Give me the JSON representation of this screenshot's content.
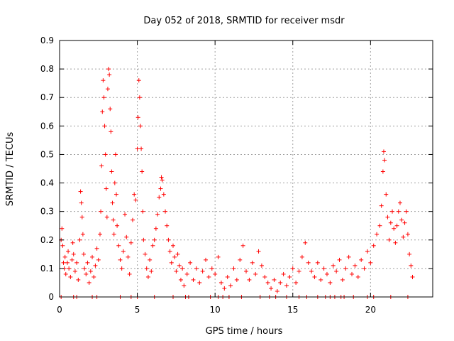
{
  "chart_data": {
    "type": "scatter",
    "title": "Day 052 of 2018, SRMTID for receiver msdr",
    "xlabel": "GPS time / hours",
    "ylabel": "SRMTID / TECUs",
    "xlim": [
      0,
      24
    ],
    "ylim": [
      0,
      0.9
    ],
    "xticks": [
      0,
      5,
      10,
      15,
      20
    ],
    "yticks": [
      0,
      0.1,
      0.2,
      0.3,
      0.4,
      0.5,
      0.6,
      0.7,
      0.8,
      0.9
    ],
    "ytick_labels": [
      "0",
      "0.1",
      "0.2",
      "0.3",
      "0.4",
      "0.5",
      "0.6",
      "0.7",
      "0.8",
      "0.9"
    ],
    "xtick_labels": [
      "0",
      "5",
      "10",
      "15",
      "20"
    ],
    "grid": true,
    "marker": "+",
    "color": "#ff0000",
    "series": [
      {
        "name": "SRMTID",
        "points": [
          [
            0.1,
            0.2
          ],
          [
            0.15,
            0.24
          ],
          [
            0.2,
            0.18
          ],
          [
            0.25,
            0.12
          ],
          [
            0.3,
            0.1
          ],
          [
            0.35,
            0.14
          ],
          [
            0.4,
            0.08
          ],
          [
            0.5,
            0.12
          ],
          [
            0.55,
            0.16
          ],
          [
            0.6,
            0.1
          ],
          [
            0.7,
            0.07
          ],
          [
            0.8,
            0.13
          ],
          [
            0.85,
            0.19
          ],
          [
            0.9,
            0.15
          ],
          [
            1.0,
            0.09
          ],
          [
            1.1,
            0.12
          ],
          [
            1.2,
            0.06
          ],
          [
            1.3,
            0.2
          ],
          [
            1.35,
            0.37
          ],
          [
            1.4,
            0.33
          ],
          [
            1.45,
            0.28
          ],
          [
            1.5,
            0.22
          ],
          [
            1.55,
            0.15
          ],
          [
            1.6,
            0.1
          ],
          [
            1.7,
            0.08
          ],
          [
            1.8,
            0.12
          ],
          [
            1.9,
            0.05
          ],
          [
            2.0,
            0.09
          ],
          [
            2.1,
            0.14
          ],
          [
            2.2,
            0.07
          ],
          [
            2.3,
            0.11
          ],
          [
            2.4,
            0.17
          ],
          [
            2.5,
            0.13
          ],
          [
            2.6,
            0.22
          ],
          [
            2.65,
            0.3
          ],
          [
            2.7,
            0.46
          ],
          [
            2.75,
            0.65
          ],
          [
            2.8,
            0.76
          ],
          [
            2.85,
            0.7
          ],
          [
            2.9,
            0.6
          ],
          [
            2.95,
            0.5
          ],
          [
            3.0,
            0.38
          ],
          [
            3.05,
            0.28
          ],
          [
            3.1,
            0.73
          ],
          [
            3.15,
            0.8
          ],
          [
            3.2,
            0.78
          ],
          [
            3.25,
            0.66
          ],
          [
            3.3,
            0.58
          ],
          [
            3.35,
            0.44
          ],
          [
            3.4,
            0.33
          ],
          [
            3.45,
            0.27
          ],
          [
            3.5,
            0.22
          ],
          [
            3.55,
            0.4
          ],
          [
            3.6,
            0.5
          ],
          [
            3.65,
            0.36
          ],
          [
            3.7,
            0.25
          ],
          [
            3.8,
            0.18
          ],
          [
            3.9,
            0.13
          ],
          [
            4.0,
            0.1
          ],
          [
            4.1,
            0.16
          ],
          [
            4.2,
            0.29
          ],
          [
            4.3,
            0.21
          ],
          [
            4.4,
            0.14
          ],
          [
            4.5,
            0.08
          ],
          [
            4.6,
            0.19
          ],
          [
            4.7,
            0.27
          ],
          [
            4.8,
            0.36
          ],
          [
            4.9,
            0.34
          ],
          [
            5.0,
            0.52
          ],
          [
            5.05,
            0.63
          ],
          [
            5.1,
            0.76
          ],
          [
            5.15,
            0.7
          ],
          [
            5.2,
            0.6
          ],
          [
            5.25,
            0.52
          ],
          [
            5.3,
            0.44
          ],
          [
            5.35,
            0.3
          ],
          [
            5.4,
            0.2
          ],
          [
            5.5,
            0.15
          ],
          [
            5.6,
            0.1
          ],
          [
            5.7,
            0.07
          ],
          [
            5.8,
            0.13
          ],
          [
            5.9,
            0.09
          ],
          [
            6.0,
            0.18
          ],
          [
            6.1,
            0.2
          ],
          [
            6.2,
            0.24
          ],
          [
            6.3,
            0.29
          ],
          [
            6.4,
            0.35
          ],
          [
            6.5,
            0.38
          ],
          [
            6.55,
            0.42
          ],
          [
            6.6,
            0.41
          ],
          [
            6.7,
            0.36
          ],
          [
            6.8,
            0.3
          ],
          [
            6.9,
            0.25
          ],
          [
            7.0,
            0.2
          ],
          [
            7.1,
            0.16
          ],
          [
            7.2,
            0.12
          ],
          [
            7.3,
            0.18
          ],
          [
            7.4,
            0.14
          ],
          [
            7.5,
            0.09
          ],
          [
            7.6,
            0.15
          ],
          [
            7.7,
            0.11
          ],
          [
            7.8,
            0.06
          ],
          [
            7.9,
            0.1
          ],
          [
            8.0,
            0.04
          ],
          [
            8.2,
            0.08
          ],
          [
            8.4,
            0.12
          ],
          [
            8.6,
            0.06
          ],
          [
            8.8,
            0.1
          ],
          [
            9.0,
            0.05
          ],
          [
            9.2,
            0.09
          ],
          [
            9.4,
            0.13
          ],
          [
            9.6,
            0.07
          ],
          [
            9.8,
            0.1
          ],
          [
            10.0,
            0.08
          ],
          [
            10.2,
            0.14
          ],
          [
            10.4,
            0.05
          ],
          [
            10.6,
            0.03
          ],
          [
            10.8,
            0.07
          ],
          [
            11.0,
            0.04
          ],
          [
            11.2,
            0.1
          ],
          [
            11.4,
            0.06
          ],
          [
            11.6,
            0.13
          ],
          [
            11.8,
            0.18
          ],
          [
            12.0,
            0.09
          ],
          [
            12.2,
            0.06
          ],
          [
            12.4,
            0.12
          ],
          [
            12.6,
            0.08
          ],
          [
            12.8,
            0.16
          ],
          [
            13.0,
            0.11
          ],
          [
            13.2,
            0.07
          ],
          [
            13.4,
            0.05
          ],
          [
            13.6,
            0.03
          ],
          [
            13.8,
            0.06
          ],
          [
            14.0,
            0.02
          ],
          [
            14.2,
            0.05
          ],
          [
            14.4,
            0.08
          ],
          [
            14.6,
            0.04
          ],
          [
            14.8,
            0.07
          ],
          [
            15.0,
            0.1
          ],
          [
            15.2,
            0.05
          ],
          [
            15.4,
            0.09
          ],
          [
            15.6,
            0.14
          ],
          [
            15.8,
            0.19
          ],
          [
            16.0,
            0.12
          ],
          [
            16.2,
            0.09
          ],
          [
            16.4,
            0.07
          ],
          [
            16.6,
            0.12
          ],
          [
            16.8,
            0.06
          ],
          [
            17.0,
            0.1
          ],
          [
            17.2,
            0.08
          ],
          [
            17.4,
            0.05
          ],
          [
            17.6,
            0.11
          ],
          [
            17.8,
            0.09
          ],
          [
            18.0,
            0.13
          ],
          [
            18.2,
            0.06
          ],
          [
            18.4,
            0.1
          ],
          [
            18.6,
            0.14
          ],
          [
            18.8,
            0.08
          ],
          [
            19.0,
            0.11
          ],
          [
            19.2,
            0.07
          ],
          [
            19.4,
            0.13
          ],
          [
            19.6,
            0.1
          ],
          [
            19.8,
            0.16
          ],
          [
            20.0,
            0.12
          ],
          [
            20.2,
            0.18
          ],
          [
            20.4,
            0.22
          ],
          [
            20.6,
            0.25
          ],
          [
            20.7,
            0.32
          ],
          [
            20.8,
            0.44
          ],
          [
            20.85,
            0.51
          ],
          [
            20.9,
            0.48
          ],
          [
            21.0,
            0.36
          ],
          [
            21.1,
            0.28
          ],
          [
            21.2,
            0.2
          ],
          [
            21.3,
            0.26
          ],
          [
            21.4,
            0.3
          ],
          [
            21.5,
            0.24
          ],
          [
            21.6,
            0.19
          ],
          [
            21.7,
            0.25
          ],
          [
            21.8,
            0.3
          ],
          [
            21.9,
            0.33
          ],
          [
            22.0,
            0.27
          ],
          [
            22.1,
            0.21
          ],
          [
            22.2,
            0.26
          ],
          [
            22.3,
            0.3
          ],
          [
            22.4,
            0.22
          ],
          [
            22.5,
            0.15
          ],
          [
            22.6,
            0.11
          ],
          [
            22.7,
            0.07
          ]
        ]
      }
    ],
    "zero_markers_x": [
      0.1,
      0.9,
      1.1,
      2.1,
      2.4,
      3.9,
      4.6,
      5.0,
      6.1,
      7.3,
      8.1,
      8.3,
      9.7,
      10.2,
      10.5,
      10.9,
      11.7,
      12.9,
      13.5,
      13.9,
      14.6,
      15.4,
      15.9,
      16.6,
      17.1,
      17.4,
      17.7,
      18.1,
      18.3,
      18.9,
      19.8,
      20.2,
      21.3,
      22.4
    ]
  }
}
